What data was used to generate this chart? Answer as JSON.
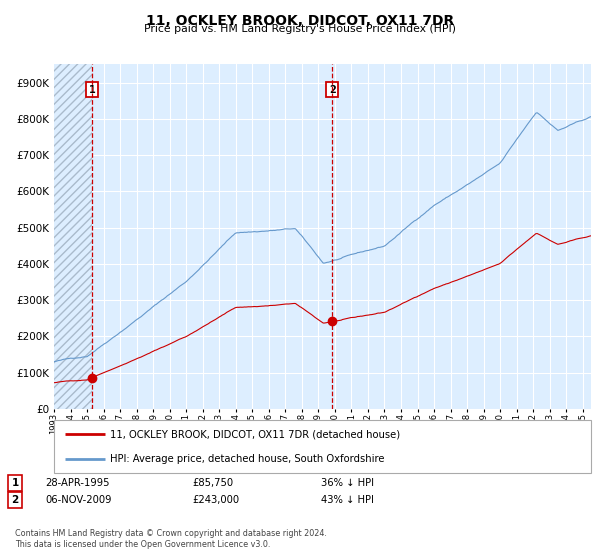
{
  "title": "11, OCKLEY BROOK, DIDCOT, OX11 7DR",
  "subtitle": "Price paid vs. HM Land Registry's House Price Index (HPI)",
  "sale1_date": "28-APR-1995",
  "sale1_price": 85750,
  "sale1_label": "36% ↓ HPI",
  "sale1_year": 1995.32,
  "sale2_date": "06-NOV-2009",
  "sale2_price": 243000,
  "sale2_label": "43% ↓ HPI",
  "sale2_year": 2009.84,
  "legend_line1": "11, OCKLEY BROOK, DIDCOT, OX11 7DR (detached house)",
  "legend_line2": "HPI: Average price, detached house, South Oxfordshire",
  "footnote": "Contains HM Land Registry data © Crown copyright and database right 2024.\nThis data is licensed under the Open Government Licence v3.0.",
  "line_color_red": "#cc0000",
  "line_color_blue": "#6699cc",
  "bg_color": "#ddeeff",
  "grid_color": "#ffffff",
  "ylim_max": 950000,
  "xstart": 1993.0,
  "xend": 2025.5
}
